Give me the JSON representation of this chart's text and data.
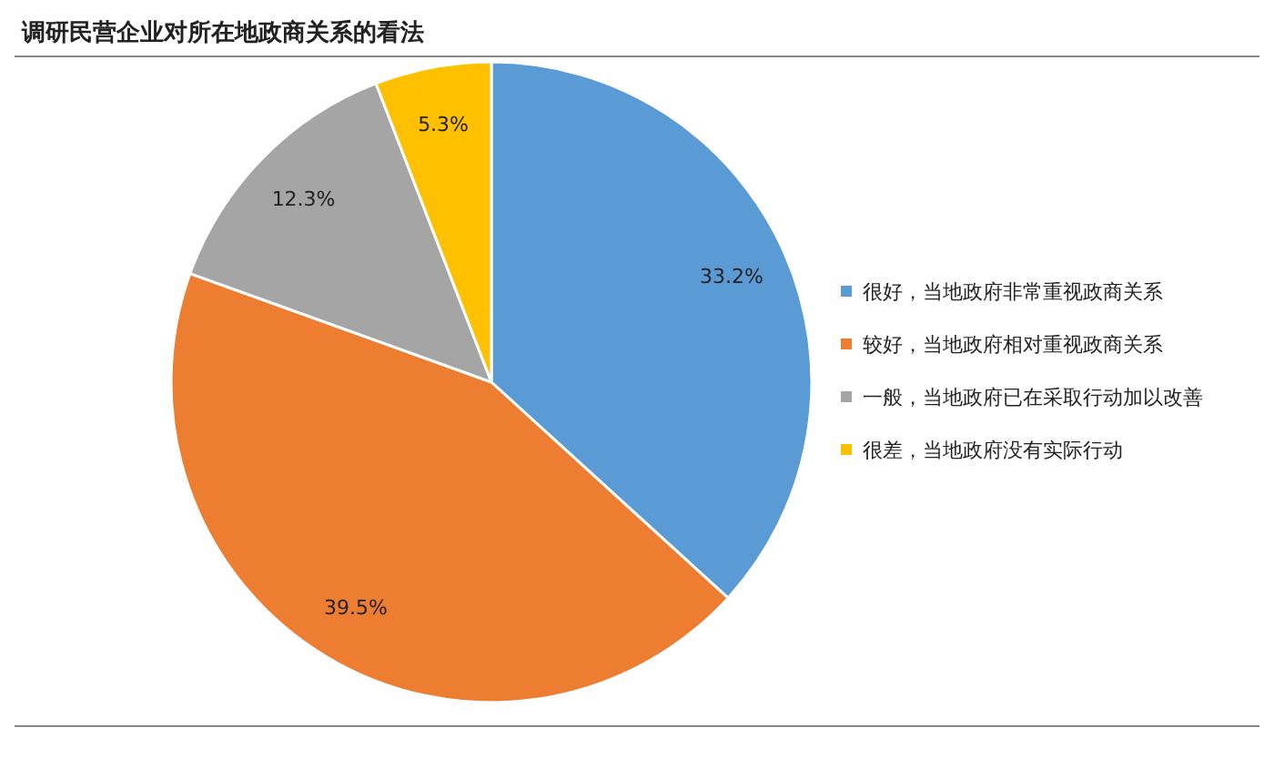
{
  "chart_data": {
    "type": "pie",
    "title": "调研民营企业对所在地政商关系的看法",
    "categories": [
      "很好，当地政府非常重视政商关系",
      "较好，当地政府相对重视政商关系",
      "一般，当地政府已在采取行动加以改善",
      "很差，当地政府没有实际行动"
    ],
    "values": [
      33.2,
      39.5,
      12.3,
      5.3
    ],
    "value_labels": [
      "33.2%",
      "39.5%",
      "12.3%",
      "5.3%"
    ],
    "colors": [
      "#5b9bd5",
      "#ed7d31",
      "#a5a5a5",
      "#ffc000"
    ],
    "legend": "right"
  }
}
